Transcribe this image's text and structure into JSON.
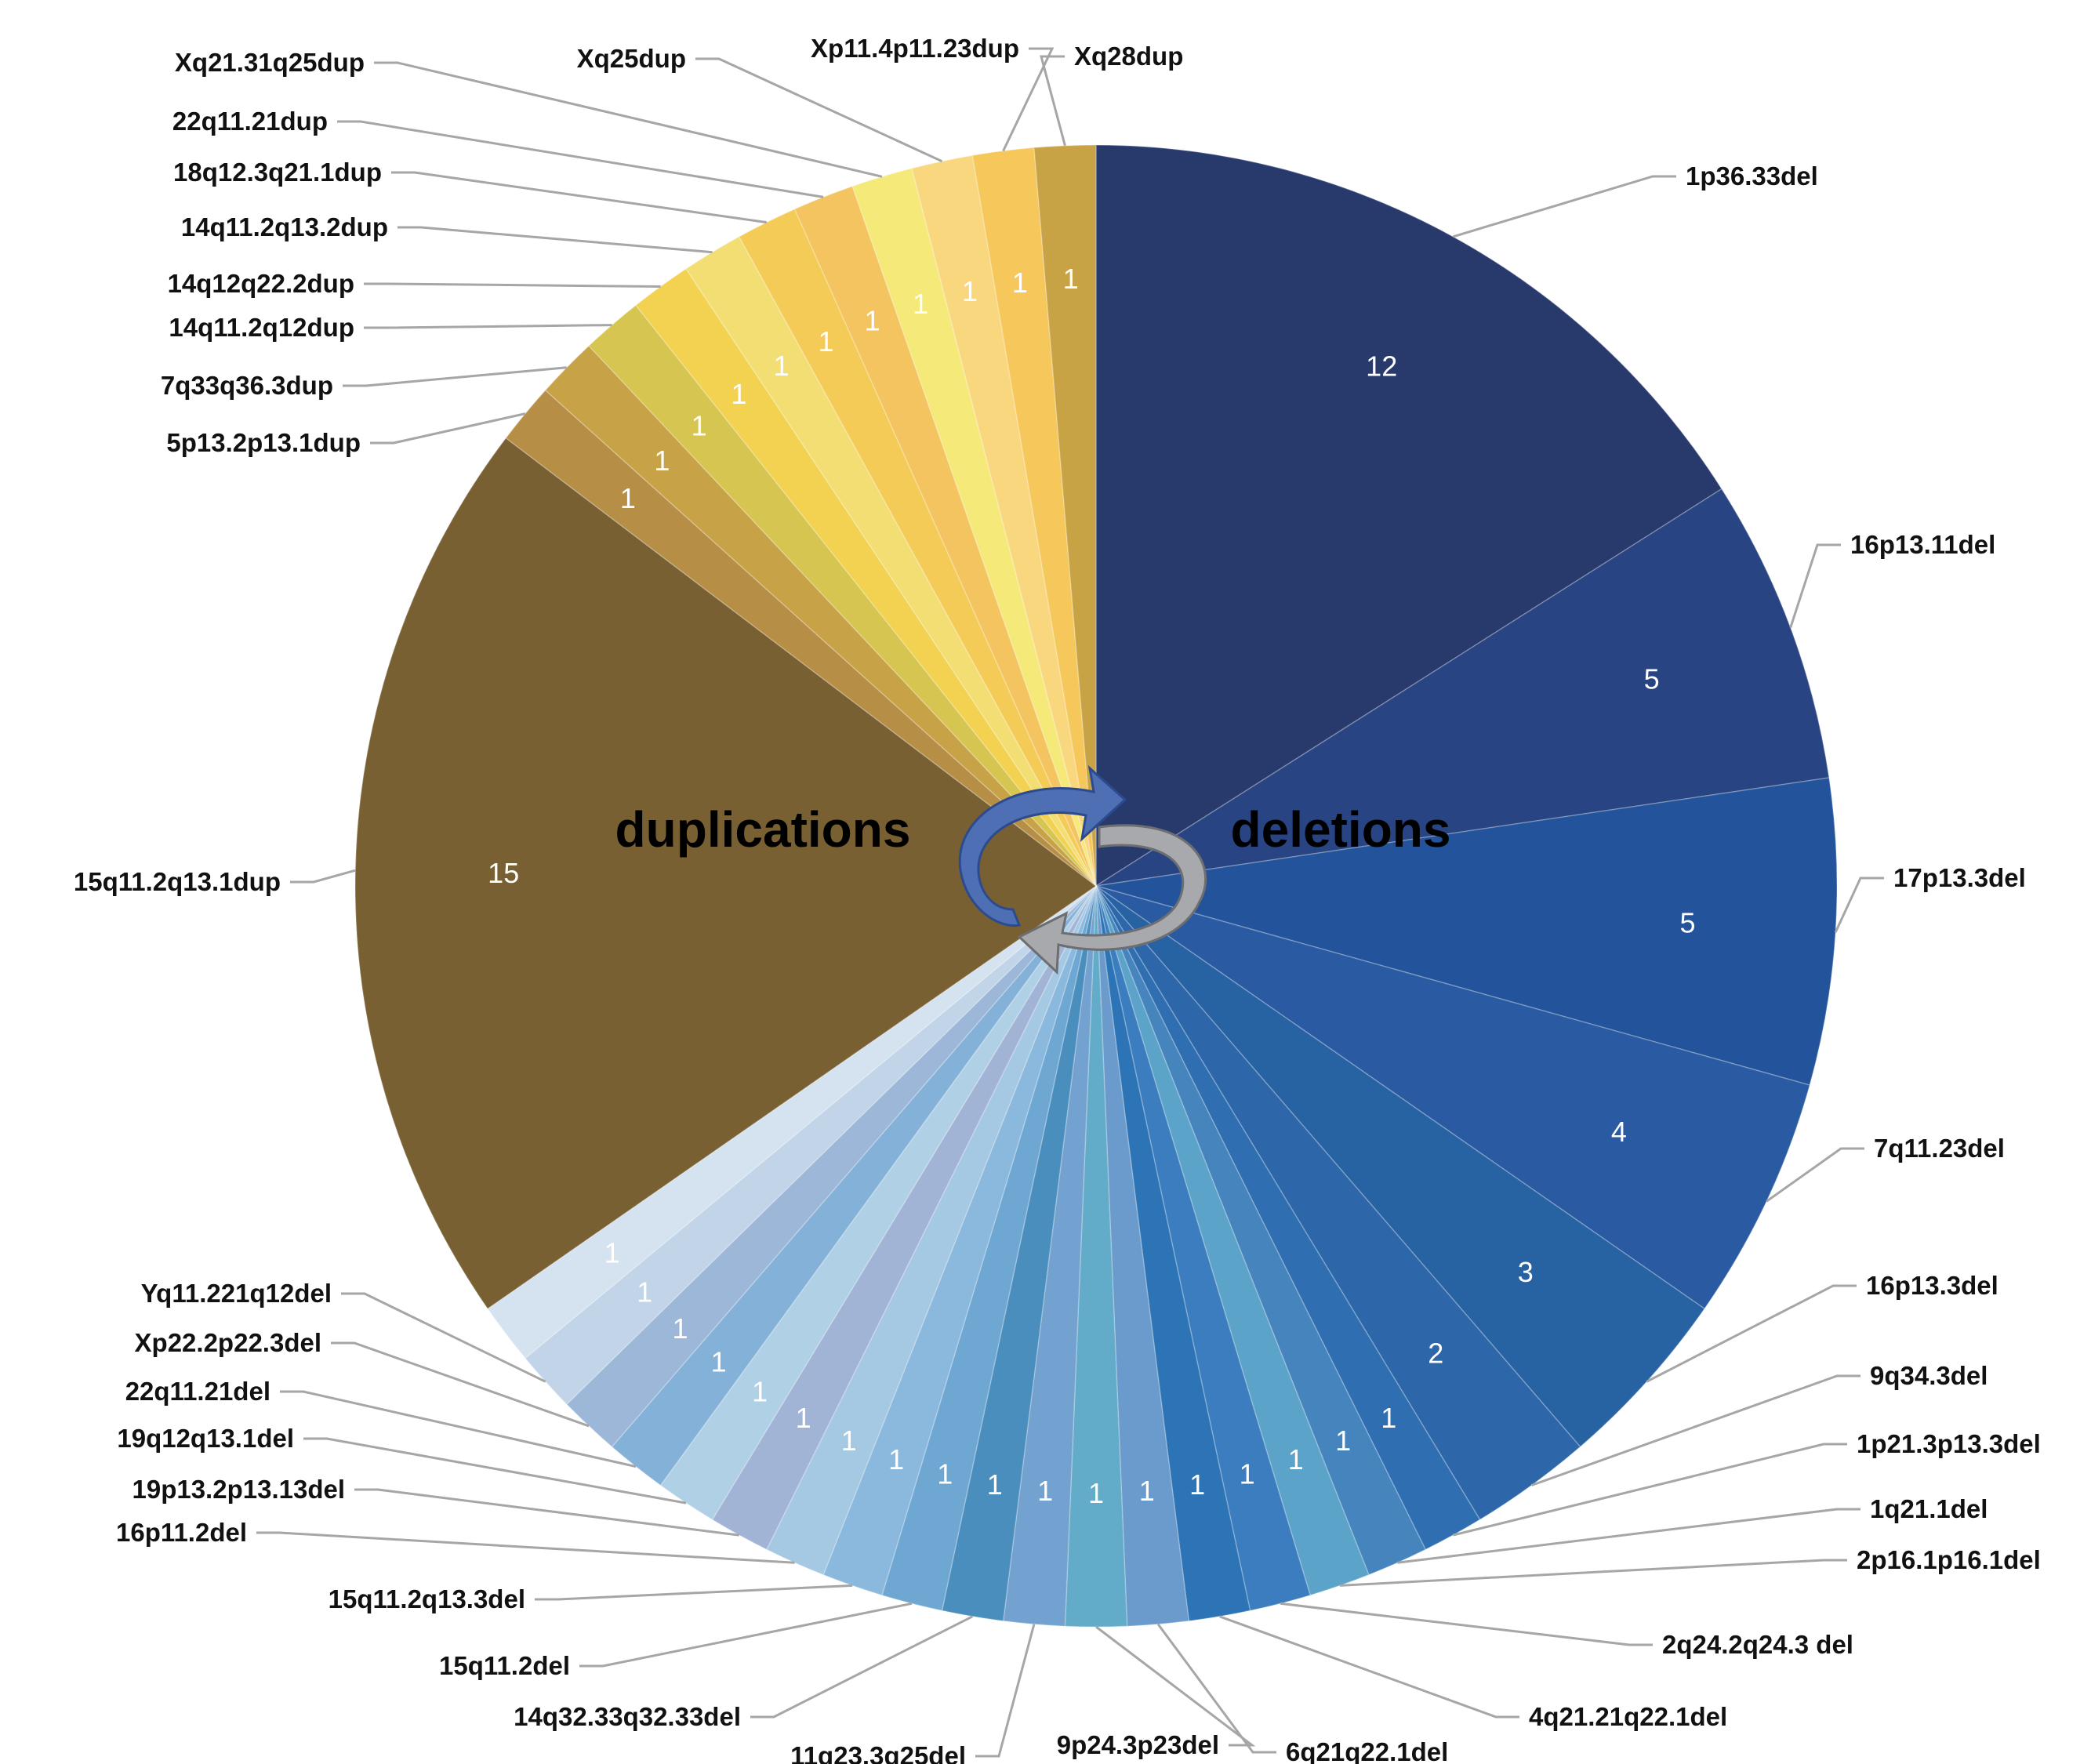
{
  "chart_data": {
    "type": "pie",
    "center_labels": {
      "duplications": "duplications",
      "deletions": "deletions"
    },
    "icons": [
      "cycle-arrows-icon"
    ],
    "slices": [
      {
        "label": "1p36.33del",
        "value": 12,
        "color": "#283a6c"
      },
      {
        "label": "16p13.11del",
        "value": 5,
        "color": "#284483"
      },
      {
        "label": "17p13.3del",
        "value": 5,
        "color": "#23539a"
      },
      {
        "label": "7q11.23del",
        "value": 4,
        "color": "#2a5aa1"
      },
      {
        "label": "16p13.3del",
        "value": 3,
        "color": "#2762a3"
      },
      {
        "label": "9q34.3del",
        "value": 2,
        "color": "#2d67a9"
      },
      {
        "label": "1p21.3p13.3del",
        "value": 1,
        "color": "#2f6eb0"
      },
      {
        "label": "1q21.1del",
        "value": 1,
        "color": "#4584bd"
      },
      {
        "label": "2p16.1p16.1del",
        "value": 1,
        "color": "#5ba3c8"
      },
      {
        "label": "2q24.2q24.3 del",
        "value": 1,
        "color": "#3b7dbe"
      },
      {
        "label": "4q21.21q22.1del",
        "value": 1,
        "color": "#2c74b6"
      },
      {
        "label": "6q21q22.1del",
        "value": 1,
        "color": "#6a9bcc"
      },
      {
        "label": "9p24.3p23del",
        "value": 1,
        "color": "#62abc9"
      },
      {
        "label": "11q23.3q25del",
        "value": 1,
        "color": "#73a2d0"
      },
      {
        "label": "14q32.33q32.33del",
        "value": 1,
        "color": "#4a8ebd"
      },
      {
        "label": "15q11.2del",
        "value": 1,
        "color": "#6fa7d3"
      },
      {
        "label": "15q11.2q13.3del",
        "value": 1,
        "color": "#8ab9dd"
      },
      {
        "label": "16p11.2del",
        "value": 1,
        "color": "#a5c8e3"
      },
      {
        "label": "19p13.2p13.13del",
        "value": 1,
        "color": "#a2b4d6"
      },
      {
        "label": "19q12q13.1del",
        "value": 1,
        "color": "#b0d0e6"
      },
      {
        "label": "22q11.21del",
        "value": 1,
        "color": "#84b1d8"
      },
      {
        "label": "Xp22.2p22.3del",
        "value": 1,
        "color": "#9db7d8"
      },
      {
        "label": "Yq11.221q12del",
        "value": 1,
        "color": "#c1d4e8"
      },
      {
        "label": "",
        "value": 1,
        "color": "#d5e3f1"
      },
      {
        "label": "15q11.2q13.1dup",
        "value": 15,
        "color": "#786033"
      },
      {
        "label": "5p13.2p13.1dup",
        "value": 1,
        "color": "#b78e45"
      },
      {
        "label": "7q33q36.3dup",
        "value": 1,
        "color": "#c8a247"
      },
      {
        "label": "14q11.2q12dup",
        "value": 1,
        "color": "#d6c550"
      },
      {
        "label": "14q12q22.2dup",
        "value": 1,
        "color": "#f2d250"
      },
      {
        "label": "14q11.2q13.2dup",
        "value": 1,
        "color": "#f3de73"
      },
      {
        "label": "18q12.3q21.1dup",
        "value": 1,
        "color": "#f5cb58"
      },
      {
        "label": "22q11.21dup",
        "value": 1,
        "color": "#f3c45f"
      },
      {
        "label": "Xq21.31q25dup",
        "value": 1,
        "color": "#f5e97a"
      },
      {
        "label": "Xq25dup",
        "value": 1,
        "color": "#f8d77e"
      },
      {
        "label": "Xp11.4p11.23dup",
        "value": 1,
        "color": "#f6c75a"
      },
      {
        "label": "Xq28dup",
        "value": 1,
        "color": "#c8a346"
      }
    ]
  }
}
